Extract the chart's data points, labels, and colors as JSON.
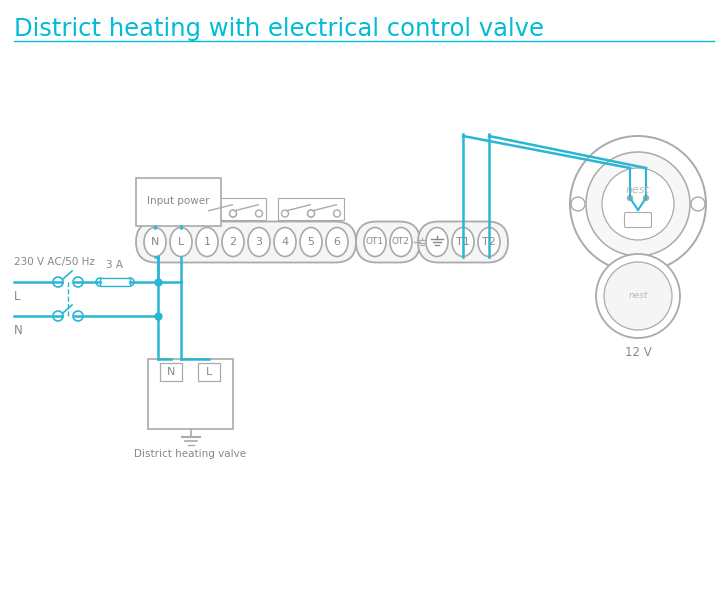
{
  "title": "District heating with electrical control valve",
  "title_color": "#00bcd4",
  "wire_color": "#29b6d4",
  "gray": "#aaaaaa",
  "text_gray": "#888888",
  "bg": "#ffffff",
  "term_main": [
    "N",
    "L",
    "1",
    "2",
    "3",
    "4",
    "5",
    "6"
  ],
  "term_ot": [
    "OT1",
    "OT2"
  ],
  "term_t": [
    "≡",
    "T1",
    "T2"
  ],
  "input_power": "Input power",
  "district_valve": "District heating valve",
  "voltage": "230 V AC/50 Hz",
  "fuse": "3 A",
  "L_lbl": "L",
  "N_lbl": "N",
  "v12": "12 V",
  "nest": "nest"
}
